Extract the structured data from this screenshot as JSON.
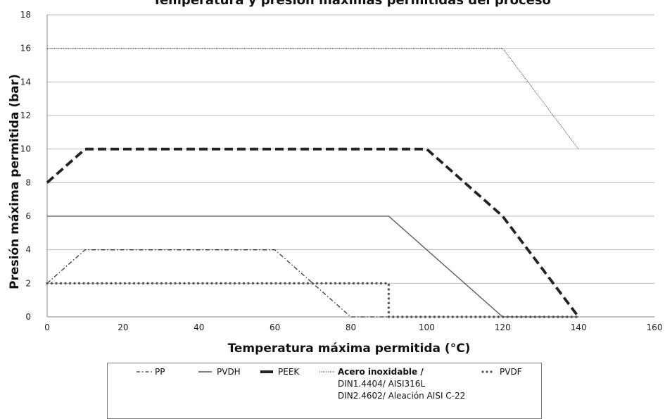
{
  "chart_data": {
    "type": "line",
    "title": "Temperatura y presión máximas permitidas del proceso",
    "xlabel": "Temperatura máxima permitida (°C)",
    "ylabel": "Presión máxima permitida (bar)",
    "xlim": [
      0,
      160
    ],
    "ylim": [
      0,
      18
    ],
    "xticks": [
      0,
      20,
      40,
      60,
      80,
      100,
      120,
      140,
      160
    ],
    "yticks": [
      0,
      2,
      4,
      6,
      8,
      10,
      12,
      14,
      16,
      18
    ],
    "grid": "horizontal",
    "legend_position": "bottom",
    "series": [
      {
        "name": "PP",
        "style": "dash-dot",
        "color": "#333333",
        "x": [
          0,
          10,
          60,
          80,
          90
        ],
        "y": [
          2,
          4,
          4,
          0,
          0
        ]
      },
      {
        "name": "PVDH",
        "style": "solid",
        "color": "#555555",
        "x": [
          0,
          90,
          120,
          140
        ],
        "y": [
          6,
          6,
          0,
          0
        ]
      },
      {
        "name": "PEEK",
        "style": "thick-dash",
        "color": "#222222",
        "x": [
          0,
          10,
          100,
          120,
          140
        ],
        "y": [
          8,
          10,
          10,
          6,
          0
        ]
      },
      {
        "name": "Acero inoxidable / DIN1.4404/ AISI316L DIN2.4602/ Aleación AISI C-22",
        "style": "dotted",
        "color": "#444444",
        "x": [
          0,
          120,
          140
        ],
        "y": [
          16,
          16,
          10
        ]
      },
      {
        "name": "PVDF",
        "style": "round-dot",
        "color": "#555555",
        "x": [
          0,
          90,
          90,
          140
        ],
        "y": [
          2,
          2,
          0,
          0
        ]
      }
    ]
  },
  "legend": {
    "pp": "PP",
    "pvdh": "PVDH",
    "peek": "PEEK",
    "steel_line1": "Acero inoxidable /",
    "steel_line2": "DIN1.4404/ AISI316L",
    "steel_line3": "DIN2.4602/ Aleación AISI C-22",
    "pvdf": "PVDF"
  }
}
